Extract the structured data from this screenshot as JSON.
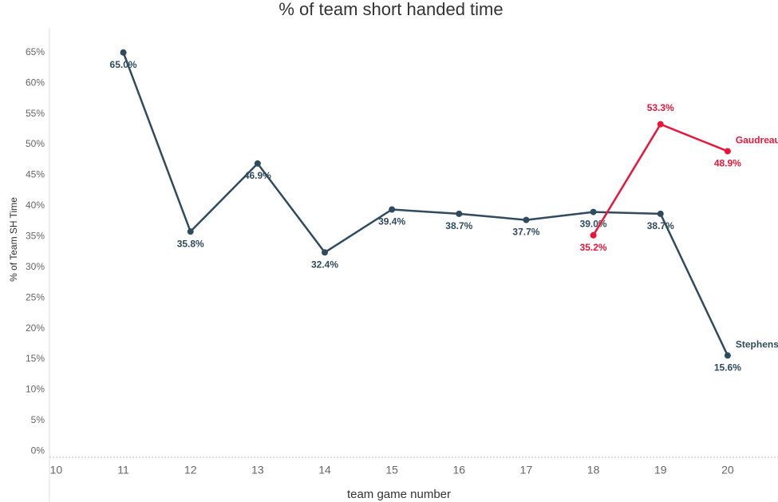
{
  "chart_data": {
    "type": "line",
    "title": "% of team short handed time",
    "x_label": "team game number",
    "y_label": "% of Team SH Time",
    "xlim": [
      9.9,
      20.75
    ],
    "xticks": [
      10,
      11,
      12,
      13,
      14,
      15,
      16,
      17,
      18,
      19,
      20
    ],
    "ylim": [
      -1,
      69
    ],
    "yticks": [
      {
        "value": 0,
        "label": "0%"
      },
      {
        "value": 5,
        "label": "5%"
      },
      {
        "value": 10,
        "label": "10%"
      },
      {
        "value": 15,
        "label": "15%"
      },
      {
        "value": 20,
        "label": "20%"
      },
      {
        "value": 25,
        "label": "25%"
      },
      {
        "value": 30,
        "label": "30%"
      },
      {
        "value": 35,
        "label": "35%"
      },
      {
        "value": 40,
        "label": "40%"
      },
      {
        "value": 45,
        "label": "45%"
      },
      {
        "value": 50,
        "label": "50%"
      },
      {
        "value": 55,
        "label": "55%"
      },
      {
        "value": 60,
        "label": "60%"
      },
      {
        "value": 65,
        "label": "65%"
      }
    ],
    "series": [
      {
        "name": "Stephenson",
        "color": "#2f4b5f",
        "x": [
          11,
          12,
          13,
          14,
          15,
          16,
          17,
          18,
          19,
          20
        ],
        "values": [
          65.0,
          35.8,
          46.9,
          32.4,
          39.4,
          38.7,
          37.7,
          39.0,
          38.7,
          15.6
        ],
        "value_labels": [
          "65.0%",
          "35.8%",
          "46.9%",
          "32.4%",
          "39.4%",
          "38.7%",
          "37.7%",
          "39.0%",
          "38.7%",
          "15.6%"
        ]
      },
      {
        "name": "Gaudreau",
        "color": "#e8173a",
        "x": [
          18,
          19,
          20
        ],
        "values": [
          35.2,
          53.3,
          48.9
        ],
        "value_labels": [
          "35.2%",
          "53.3%",
          "48.9%"
        ]
      }
    ]
  }
}
